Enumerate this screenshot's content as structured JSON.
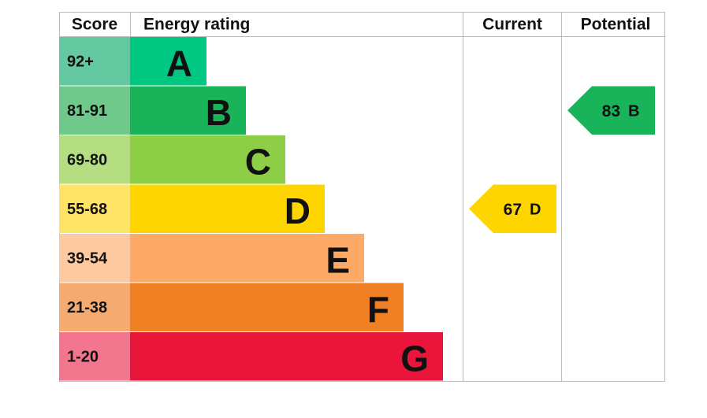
{
  "header": {
    "score": "Score",
    "rating": "Energy rating",
    "current": "Current",
    "potential": "Potential"
  },
  "bands": [
    {
      "score": "92+",
      "letter": "A",
      "color": "#00c781",
      "score_color": "#64c8a0"
    },
    {
      "score": "81-91",
      "letter": "B",
      "color": "#19b459",
      "score_color": "#6ec98a"
    },
    {
      "score": "69-80",
      "letter": "C",
      "color": "#8dce46",
      "score_color": "#b5de82"
    },
    {
      "score": "55-68",
      "letter": "D",
      "color": "#ffd500",
      "score_color": "#ffe366"
    },
    {
      "score": "39-54",
      "letter": "E",
      "color": "#fcaa65",
      "score_color": "#fdc9a0"
    },
    {
      "score": "21-38",
      "letter": "F",
      "color": "#ef8023",
      "score_color": "#f5ab70"
    },
    {
      "score": "1-20",
      "letter": "G",
      "color": "#e9153b",
      "score_color": "#f2778e"
    }
  ],
  "current": {
    "value": 67,
    "letter": "D"
  },
  "potential": {
    "value": 83,
    "letter": "B"
  }
}
